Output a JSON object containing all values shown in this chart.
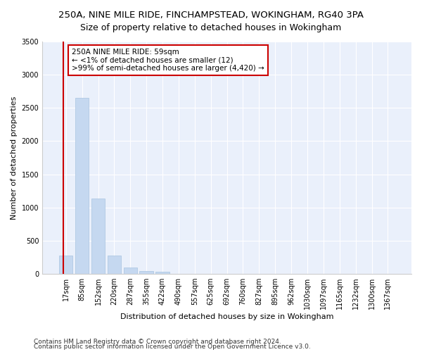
{
  "title": "250A, NINE MILE RIDE, FINCHAMPSTEAD, WOKINGHAM, RG40 3PA",
  "subtitle": "Size of property relative to detached houses in Wokingham",
  "xlabel": "Distribution of detached houses by size in Wokingham",
  "ylabel": "Number of detached properties",
  "bar_color": "#c5d8f0",
  "bar_edgecolor": "#a8c4e0",
  "categories": [
    "17sqm",
    "85sqm",
    "152sqm",
    "220sqm",
    "287sqm",
    "355sqm",
    "422sqm",
    "490sqm",
    "557sqm",
    "625sqm",
    "692sqm",
    "760sqm",
    "827sqm",
    "895sqm",
    "962sqm",
    "1030sqm",
    "1097sqm",
    "1165sqm",
    "1232sqm",
    "1300sqm",
    "1367sqm"
  ],
  "values": [
    280,
    2650,
    1140,
    280,
    95,
    45,
    30,
    0,
    0,
    0,
    0,
    0,
    0,
    0,
    0,
    0,
    0,
    0,
    0,
    0,
    0
  ],
  "ylim": [
    0,
    3500
  ],
  "yticks": [
    0,
    500,
    1000,
    1500,
    2000,
    2500,
    3000,
    3500
  ],
  "annotation_text": "250A NINE MILE RIDE: 59sqm\n← <1% of detached houses are smaller (12)\n>99% of semi-detached houses are larger (4,420) →",
  "annotation_box_color": "#ffffff",
  "annotation_box_edgecolor": "#cc0000",
  "marker_color": "#cc0000",
  "footer1": "Contains HM Land Registry data © Crown copyright and database right 2024.",
  "footer2": "Contains public sector information licensed under the Open Government Licence v3.0.",
  "background_color": "#eaf0fb",
  "grid_color": "#ffffff",
  "title_fontsize": 9.5,
  "subtitle_fontsize": 9,
  "axis_label_fontsize": 8,
  "tick_fontsize": 7,
  "annotation_fontsize": 7.5,
  "footer_fontsize": 6.5
}
